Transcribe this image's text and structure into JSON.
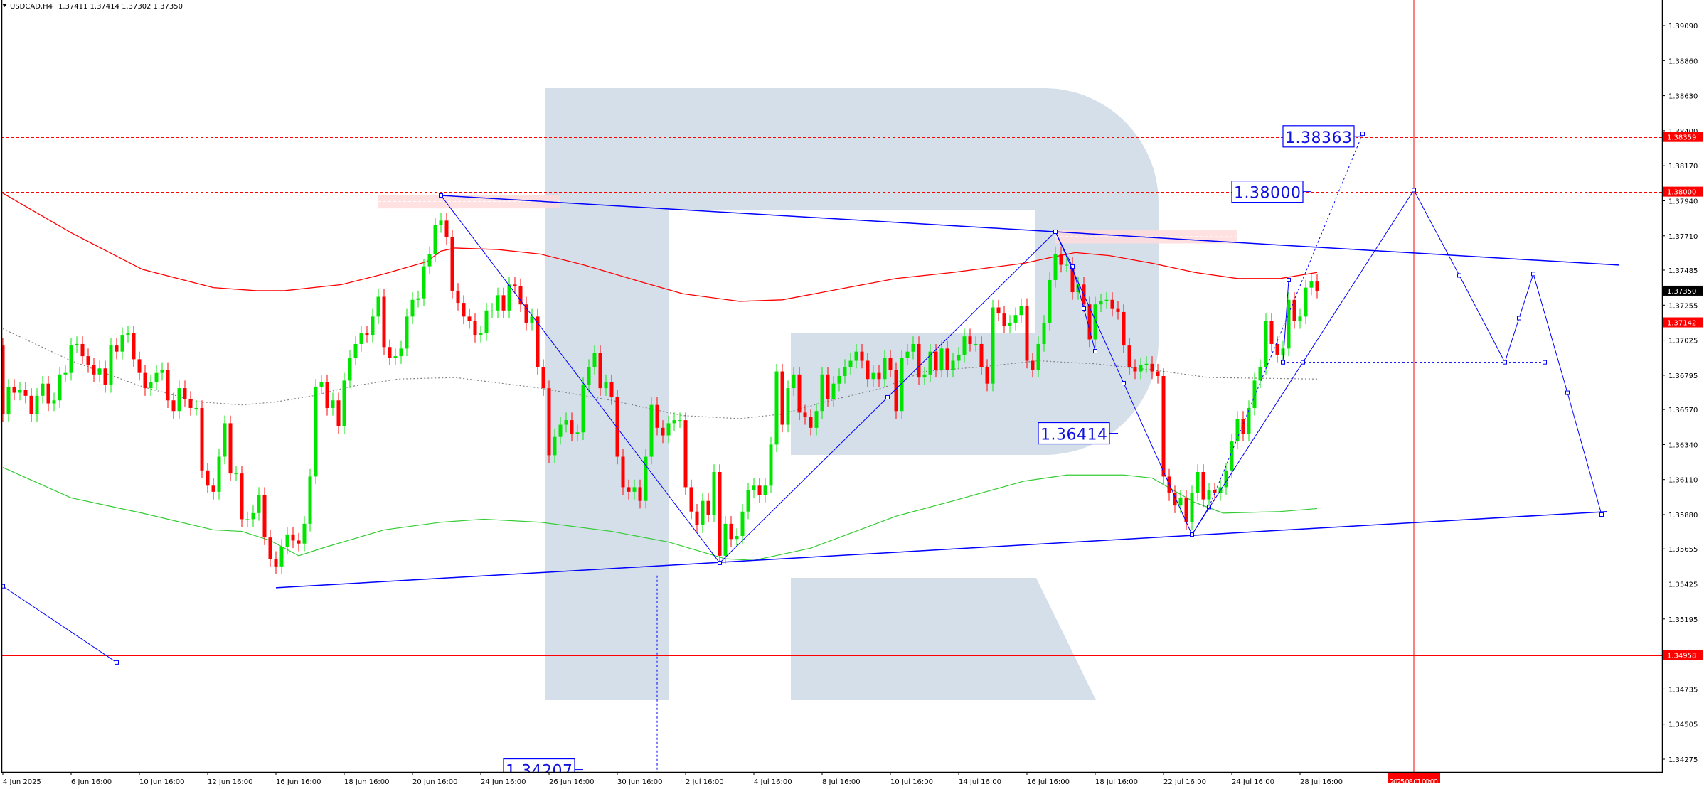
{
  "header": {
    "menu_icon": "triangle-down-icon",
    "symbol": "USDCAD,H4",
    "ohlc": "1.37411 1.37414 1.37302 1.37350"
  },
  "colors": {
    "bull": "#00e400",
    "bear": "#ff0000",
    "level_line": "#ff0000",
    "drawing": "#0000ff",
    "ma_upper": "#ff0000",
    "ma_middle": "#808080",
    "ma_lower": "#33cc33",
    "zone": "#ffdcdc",
    "watermark": "#d4dfea",
    "current_price_tag": "#000000"
  },
  "watermark": {
    "logo": "R",
    "description_text": ""
  },
  "chart_data": {
    "type": "candlestick",
    "symbol": "USDCAD",
    "timeframe": "H4",
    "ylim": [
      1.3405,
      1.3929
    ],
    "grid": false,
    "first_open": 1.3699,
    "close": [
      1.3654,
      1.3672,
      1.3668,
      1.367,
      1.3666,
      1.3654,
      1.3666,
      1.3674,
      1.3661,
      1.3663,
      1.368,
      1.3681,
      1.3699,
      1.37,
      1.3692,
      1.3686,
      1.368,
      1.3684,
      1.3673,
      1.3699,
      1.3695,
      1.3706,
      1.3707,
      1.369,
      1.3681,
      1.3671,
      1.3675,
      1.3681,
      1.3683,
      1.3663,
      1.3656,
      1.3671,
      1.3664,
      1.3658,
      1.3658,
      1.3617,
      1.3607,
      1.3603,
      1.3626,
      1.3648,
      1.3615,
      1.3615,
      1.3585,
      1.3585,
      1.3589,
      1.3601,
      1.3573,
      1.3559,
      1.3554,
      1.3567,
      1.3575,
      1.3571,
      1.3569,
      1.3582,
      1.3613,
      1.3672,
      1.3675,
      1.3658,
      1.3663,
      1.3646,
      1.3676,
      1.3691,
      1.37,
      1.3707,
      1.3706,
      1.3718,
      1.3731,
      1.3698,
      1.3691,
      1.3692,
      1.3697,
      1.3718,
      1.3729,
      1.373,
      1.3751,
      1.3759,
      1.3778,
      1.3781,
      1.377,
      1.3735,
      1.3727,
      1.3718,
      1.3715,
      1.3706,
      1.3707,
      1.3722,
      1.3722,
      1.3732,
      1.3722,
      1.3739,
      1.3738,
      1.3726,
      1.3714,
      1.3718,
      1.3685,
      1.3671,
      1.3627,
      1.3639,
      1.3647,
      1.365,
      1.3641,
      1.3642,
      1.3673,
      1.3685,
      1.3694,
      1.3671,
      1.3675,
      1.3665,
      1.3626,
      1.3606,
      1.3603,
      1.3606,
      1.3597,
      1.3626,
      1.366,
      1.3645,
      1.364,
      1.3648,
      1.365,
      1.365,
      1.3606,
      1.359,
      1.3581,
      1.3597,
      1.3588,
      1.3616,
      1.3561,
      1.3582,
      1.3572,
      1.3574,
      1.359,
      1.3604,
      1.3607,
      1.3601,
      1.3607,
      1.3634,
      1.3682,
      1.3647,
      1.3671,
      1.368,
      1.3655,
      1.3652,
      1.3645,
      1.3656,
      1.368,
      1.3664,
      1.3674,
      1.3679,
      1.3685,
      1.3689,
      1.3695,
      1.3689,
      1.3677,
      1.3681,
      1.3677,
      1.3691,
      1.3683,
      1.3656,
      1.3691,
      1.3695,
      1.37,
      1.3678,
      1.368,
      1.3695,
      1.3683,
      1.3697,
      1.3683,
      1.3689,
      1.3693,
      1.3705,
      1.37,
      1.37,
      1.3685,
      1.3674,
      1.3724,
      1.372,
      1.3712,
      1.3714,
      1.3719,
      1.3725,
      1.3689,
      1.3683,
      1.37,
      1.3714,
      1.3742,
      1.3759,
      1.3752,
      1.3752,
      1.3734,
      1.3739,
      1.3726,
      1.3703,
      1.3726,
      1.3728,
      1.3729,
      1.3723,
      1.3721,
      1.3699,
      1.3685,
      1.3682,
      1.3686,
      1.3687,
      1.3682,
      1.3679,
      1.3613,
      1.3602,
      1.3594,
      1.3599,
      1.3583,
      1.3602,
      1.3616,
      1.3598,
      1.3604,
      1.3602,
      1.3606,
      1.3617,
      1.3636,
      1.3651,
      1.3641,
      1.3658,
      1.3676,
      1.3685,
      1.3715,
      1.37,
      1.3693,
      1.3697,
      1.3729,
      1.3715,
      1.3718,
      1.3737,
      1.3741,
      1.3735
    ],
    "indicators": {
      "ma_upper": [
        [
          0,
          1.3799
        ],
        [
          12,
          1.3773
        ],
        [
          24.5,
          1.3749
        ],
        [
          37,
          1.3737
        ],
        [
          44.5,
          1.3735
        ],
        [
          49.5,
          1.3735
        ],
        [
          59.5,
          1.3739
        ],
        [
          67,
          1.3746
        ],
        [
          74.5,
          1.3754
        ],
        [
          77,
          1.3761
        ],
        [
          79.5,
          1.3763
        ],
        [
          87,
          1.3762
        ],
        [
          94.5,
          1.3759
        ],
        [
          102,
          1.3752
        ],
        [
          112,
          1.3741
        ],
        [
          119.5,
          1.3733
        ],
        [
          129.5,
          1.3728
        ],
        [
          137,
          1.3729
        ],
        [
          147,
          1.3736
        ],
        [
          157,
          1.3743
        ],
        [
          167,
          1.3747
        ],
        [
          179.5,
          1.3753
        ],
        [
          184.5,
          1.3757
        ],
        [
          188.5,
          1.376
        ],
        [
          194.5,
          1.3758
        ],
        [
          202,
          1.3753
        ],
        [
          209.5,
          1.3747
        ],
        [
          217,
          1.3743
        ],
        [
          224.5,
          1.3743
        ],
        [
          231,
          1.3747
        ]
      ],
      "ma_middle": [
        [
          0,
          1.371
        ],
        [
          12,
          1.3689
        ],
        [
          24.5,
          1.3672
        ],
        [
          34.5,
          1.3662
        ],
        [
          42,
          1.366
        ],
        [
          48,
          1.3662
        ],
        [
          54.5,
          1.3666
        ],
        [
          61,
          1.3672
        ],
        [
          69.5,
          1.3677
        ],
        [
          79.5,
          1.3678
        ],
        [
          94.5,
          1.3671
        ],
        [
          107,
          1.3663
        ],
        [
          119.5,
          1.3653
        ],
        [
          129.5,
          1.3651
        ],
        [
          137,
          1.3654
        ],
        [
          144.5,
          1.3662
        ],
        [
          154.5,
          1.3671
        ],
        [
          162,
          1.3682
        ],
        [
          172,
          1.3685
        ],
        [
          182,
          1.3689
        ],
        [
          192,
          1.3687
        ],
        [
          202,
          1.3683
        ],
        [
          212,
          1.3678
        ],
        [
          231,
          1.3677
        ]
      ],
      "ma_lower": [
        [
          0,
          1.3619
        ],
        [
          12,
          1.3599
        ],
        [
          24.5,
          1.3589
        ],
        [
          37,
          1.3578
        ],
        [
          42,
          1.3577
        ],
        [
          47,
          1.3571
        ],
        [
          52,
          1.3561
        ],
        [
          57,
          1.3567
        ],
        [
          67,
          1.3578
        ],
        [
          77,
          1.3583
        ],
        [
          84.5,
          1.3585
        ],
        [
          94.5,
          1.3583
        ],
        [
          107,
          1.3577
        ],
        [
          117,
          1.357
        ],
        [
          127,
          1.3559
        ],
        [
          132,
          1.3558
        ],
        [
          142,
          1.3566
        ],
        [
          157,
          1.3587
        ],
        [
          167,
          1.3597
        ],
        [
          179.5,
          1.361
        ],
        [
          187,
          1.3614
        ],
        [
          197,
          1.3614
        ],
        [
          202,
          1.3612
        ],
        [
          209.5,
          1.3596
        ],
        [
          214.5,
          1.3589
        ],
        [
          224.5,
          1.359
        ],
        [
          231,
          1.3592
        ]
      ]
    },
    "price_ticks": [
      "1.39090",
      "1.38860",
      "1.38630",
      "1.38400",
      "1.38170",
      "1.37940",
      "1.37710",
      "1.37485",
      "1.37255",
      "1.37025",
      "1.36795",
      "1.36570",
      "1.36340",
      "1.36110",
      "1.35880",
      "1.35655",
      "1.35425",
      "1.35195",
      "1.34735",
      "1.34505",
      "1.34275"
    ],
    "time_ticks": [
      "4 Jun 2025",
      "6 Jun 16:00",
      "10 Jun 16:00",
      "12 Jun 16:00",
      "16 Jun 16:00",
      "18 Jun 16:00",
      "20 Jun 16:00",
      "24 Jun 16:00",
      "26 Jun 16:00",
      "30 Jun 16:00",
      "2 Jul 16:00",
      "4 Jul 16:00",
      "8 Jul 16:00",
      "10 Jul 16:00",
      "14 Jul 16:00",
      "16 Jul 16:00",
      "18 Jul 16:00",
      "22 Jul 16:00",
      "24 Jul 16:00",
      "28 Jul 16:00"
    ],
    "time_tick_every_bars": 12,
    "current_price": "1.37350",
    "levels": [
      {
        "price": "1.38359",
        "style": "dashed"
      },
      {
        "price": "1.38000",
        "style": "dashed"
      },
      {
        "price": "1.37142",
        "style": "dashed"
      },
      {
        "price": "1.34958",
        "style": "solid"
      }
    ],
    "vertical_marker": {
      "label": "2025.08.01 00:00",
      "bar": 248
    },
    "zones": [
      {
        "from_bar": 66,
        "to_bar": 98,
        "high": 1.3798,
        "low": 1.3789
      },
      {
        "from_bar": 185,
        "to_bar": 217,
        "high": 1.3775,
        "low": 1.3766
      }
    ],
    "drawings": {
      "upper_trendline": [
        [
          77,
          1.37975
        ],
        [
          284,
          1.37518
        ]
      ],
      "lower_trendline": [
        [
          48,
          1.354
        ],
        [
          282,
          1.359
        ]
      ],
      "left_line": [
        [
          0,
          1.3541
        ],
        [
          20,
          1.3491
        ]
      ],
      "wave_a": [
        [
          77,
          1.37975
        ],
        [
          126,
          1.35563
        ],
        [
          155.5,
          1.3665
        ],
        [
          185,
          1.37737
        ]
      ],
      "wave_b": [
        [
          185,
          1.37737
        ],
        [
          188,
          1.37508
        ],
        [
          190,
          1.37233
        ],
        [
          192,
          1.36953
        ]
      ],
      "wave_c": [
        [
          185,
          1.37737
        ],
        [
          197,
          1.36743
        ],
        [
          209,
          1.35749
        ]
      ],
      "rise_solid": [
        [
          209,
          1.35749
        ],
        [
          212,
          1.3593
        ]
      ],
      "rise_dotted": [
        [
          212,
          1.3593
        ],
        [
          239,
          1.3838
        ]
      ],
      "spike_solid": [
        [
          225,
          1.3688
        ],
        [
          226,
          1.3742
        ]
      ],
      "base_dotted": [
        [
          225,
          1.3688
        ],
        [
          271,
          1.3688
        ]
      ],
      "forecast": [
        [
          209,
          1.35749
        ],
        [
          228.5,
          1.3688
        ],
        [
          248,
          1.3801
        ],
        [
          256,
          1.3745
        ],
        [
          264,
          1.3688
        ],
        [
          266.5,
          1.3717
        ],
        [
          269,
          1.3746
        ],
        [
          275,
          1.3668
        ],
        [
          281,
          1.3588
        ]
      ],
      "vertical_dotted": [
        [
          115,
          1.3548
        ],
        [
          115,
          1.3405
        ]
      ]
    },
    "labels": [
      {
        "text": "1.38363",
        "bar": 239,
        "price": 1.38363
      },
      {
        "text": "1.38000",
        "bar": 230,
        "price": 1.38
      },
      {
        "text": "1.36414",
        "bar": 196,
        "price": 1.36414
      },
      {
        "text": "1.34207",
        "bar": 102,
        "price": 1.34207
      }
    ]
  }
}
